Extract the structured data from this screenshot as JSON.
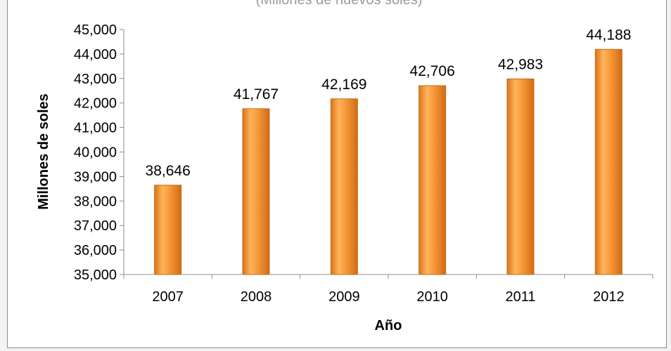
{
  "chart_data": {
    "type": "bar",
    "subtitle": "(Millones de nuevos soles)",
    "categories": [
      "2007",
      "2008",
      "2009",
      "2010",
      "2011",
      "2012"
    ],
    "values": [
      38646,
      41767,
      42169,
      42706,
      42983,
      44188
    ],
    "value_labels": [
      "38,646",
      "41,767",
      "42,169",
      "42,706",
      "42,983",
      "44,188"
    ],
    "xlabel": "Año",
    "ylabel": "Millones de soles",
    "ylim": [
      35000,
      45000
    ],
    "yticks": [
      35000,
      36000,
      37000,
      38000,
      39000,
      40000,
      41000,
      42000,
      43000,
      44000,
      45000
    ],
    "ytick_labels": [
      "35,000",
      "36,000",
      "37,000",
      "38,000",
      "39,000",
      "40,000",
      "41,000",
      "42,000",
      "43,000",
      "44,000",
      "45,000"
    ],
    "grid": false,
    "legend": "none",
    "bar_color": "#f39a3a",
    "bar_edge_color": "#c96a12"
  }
}
